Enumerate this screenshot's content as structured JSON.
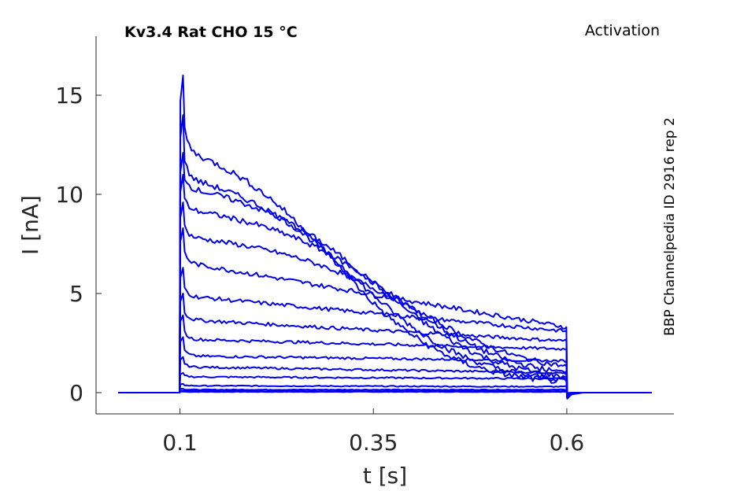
{
  "chart_data": {
    "type": "line",
    "title": "Kv3.4  Rat  CHO  15 °C",
    "protocol_label": "Activation",
    "side_label": "BBP Channelpedia ID 2916 rep 2",
    "xlabel": "t [s]",
    "ylabel": "I [nA]",
    "xlim": [
      0.0,
      0.75
    ],
    "ylim": [
      -1.0,
      17.8
    ],
    "xticks": [
      0.1,
      0.35,
      0.6
    ],
    "xtick_labels": [
      "0.1",
      "0.35",
      "0.6"
    ],
    "yticks": [
      0,
      5,
      10,
      15
    ],
    "ytick_labels": [
      "0",
      "5",
      "10",
      "15"
    ],
    "grid": false,
    "trace_color": "#0000ee",
    "pulse_start": 0.1,
    "pulse_end": 0.6,
    "series": [
      {
        "peak": 0.05,
        "sustained": 0.04,
        "end": 0.04,
        "tail": -0.02,
        "decay_tau": 0
      },
      {
        "peak": 0.1,
        "sustained": 0.08,
        "end": 0.08,
        "tail": -0.02,
        "decay_tau": 0
      },
      {
        "peak": 0.2,
        "sustained": 0.15,
        "end": 0.15,
        "tail": -0.02,
        "decay_tau": 0
      },
      {
        "peak": 0.45,
        "sustained": 0.35,
        "end": 0.3,
        "tail": -0.03,
        "decay_tau": 0
      },
      {
        "peak": 1.0,
        "sustained": 0.8,
        "end": 0.7,
        "tail": -0.05,
        "decay_tau": 0
      },
      {
        "peak": 1.8,
        "sustained": 1.3,
        "end": 1.0,
        "tail": -0.08,
        "decay_tau": 0
      },
      {
        "peak": 2.8,
        "sustained": 1.85,
        "end": 1.6,
        "tail": -0.1,
        "decay_tau": 0
      },
      {
        "peak": 3.9,
        "sustained": 2.7,
        "end": 2.2,
        "tail": -0.12,
        "decay_tau": 0
      },
      {
        "peak": 5.0,
        "sustained": 3.7,
        "end": 2.6,
        "tail": -0.15,
        "decay_tau": 0
      },
      {
        "peak": 6.3,
        "sustained": 4.9,
        "end": 3.1,
        "tail": -0.2,
        "decay_tau": 0
      },
      {
        "peak": 8.3,
        "sustained": 6.6,
        "end": 3.3,
        "tail": -0.25,
        "decay_tau": 0
      },
      {
        "peak": 9.6,
        "sustained": 7.9,
        "end": 0.9,
        "tail": -0.25,
        "decay_tau": 0.48
      },
      {
        "peak": 11.0,
        "sustained": 9.3,
        "end": 0.6,
        "tail": -0.25,
        "decay_tau": 0.44
      },
      {
        "peak": 12.1,
        "sustained": 10.4,
        "end": 0.45,
        "tail": -0.25,
        "decay_tau": 0.4
      },
      {
        "peak": 14.0,
        "sustained": 10.9,
        "end": 0.4,
        "tail": -0.3,
        "decay_tau": 0.35
      },
      {
        "peak": 16.0,
        "sustained": 12.3,
        "end": 0.35,
        "tail": -0.3,
        "decay_tau": 0.3
      }
    ]
  }
}
